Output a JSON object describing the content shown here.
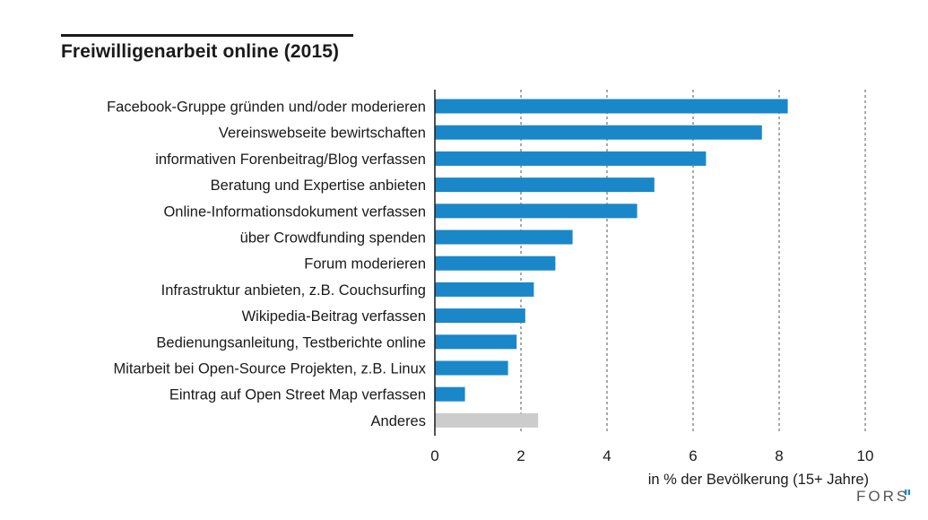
{
  "chart_data": {
    "type": "bar",
    "orientation": "horizontal",
    "title": "Freiwilligenarbeit online (2015)",
    "xlabel": "in % der Bevölkerung (15+ Jahre)",
    "xlim": [
      0,
      10
    ],
    "xticks": [
      0,
      2,
      4,
      6,
      8,
      10
    ],
    "grid": "vertical dotted",
    "categories": [
      "Facebook-Gruppe gründen und/oder moderieren",
      "Vereinswebseite bewirtschaften",
      "informativen Forenbeitrag/Blog verfassen",
      "Beratung und Expertise anbieten",
      "Online-Informationsdokument verfassen",
      "über Crowdfunding spenden",
      "Forum moderieren",
      "Infrastruktur anbieten, z.B. Couchsurfing",
      "Wikipedia-Beitrag verfassen",
      "Bedienungsanleitung, Testberichte online",
      "Mitarbeit bei Open-Source Projekten, z.B. Linux",
      "Eintrag auf Open Street Map verfassen",
      "Anderes"
    ],
    "values": [
      8.2,
      7.6,
      6.3,
      5.1,
      4.7,
      3.2,
      2.8,
      2.3,
      2.1,
      1.9,
      1.7,
      0.7,
      2.4
    ],
    "colors": {
      "bar": "#1a87c9",
      "highlight_bar": "#cccccc",
      "highlight_category": "Anderes"
    }
  },
  "branding": {
    "logo_text": "FORS"
  }
}
